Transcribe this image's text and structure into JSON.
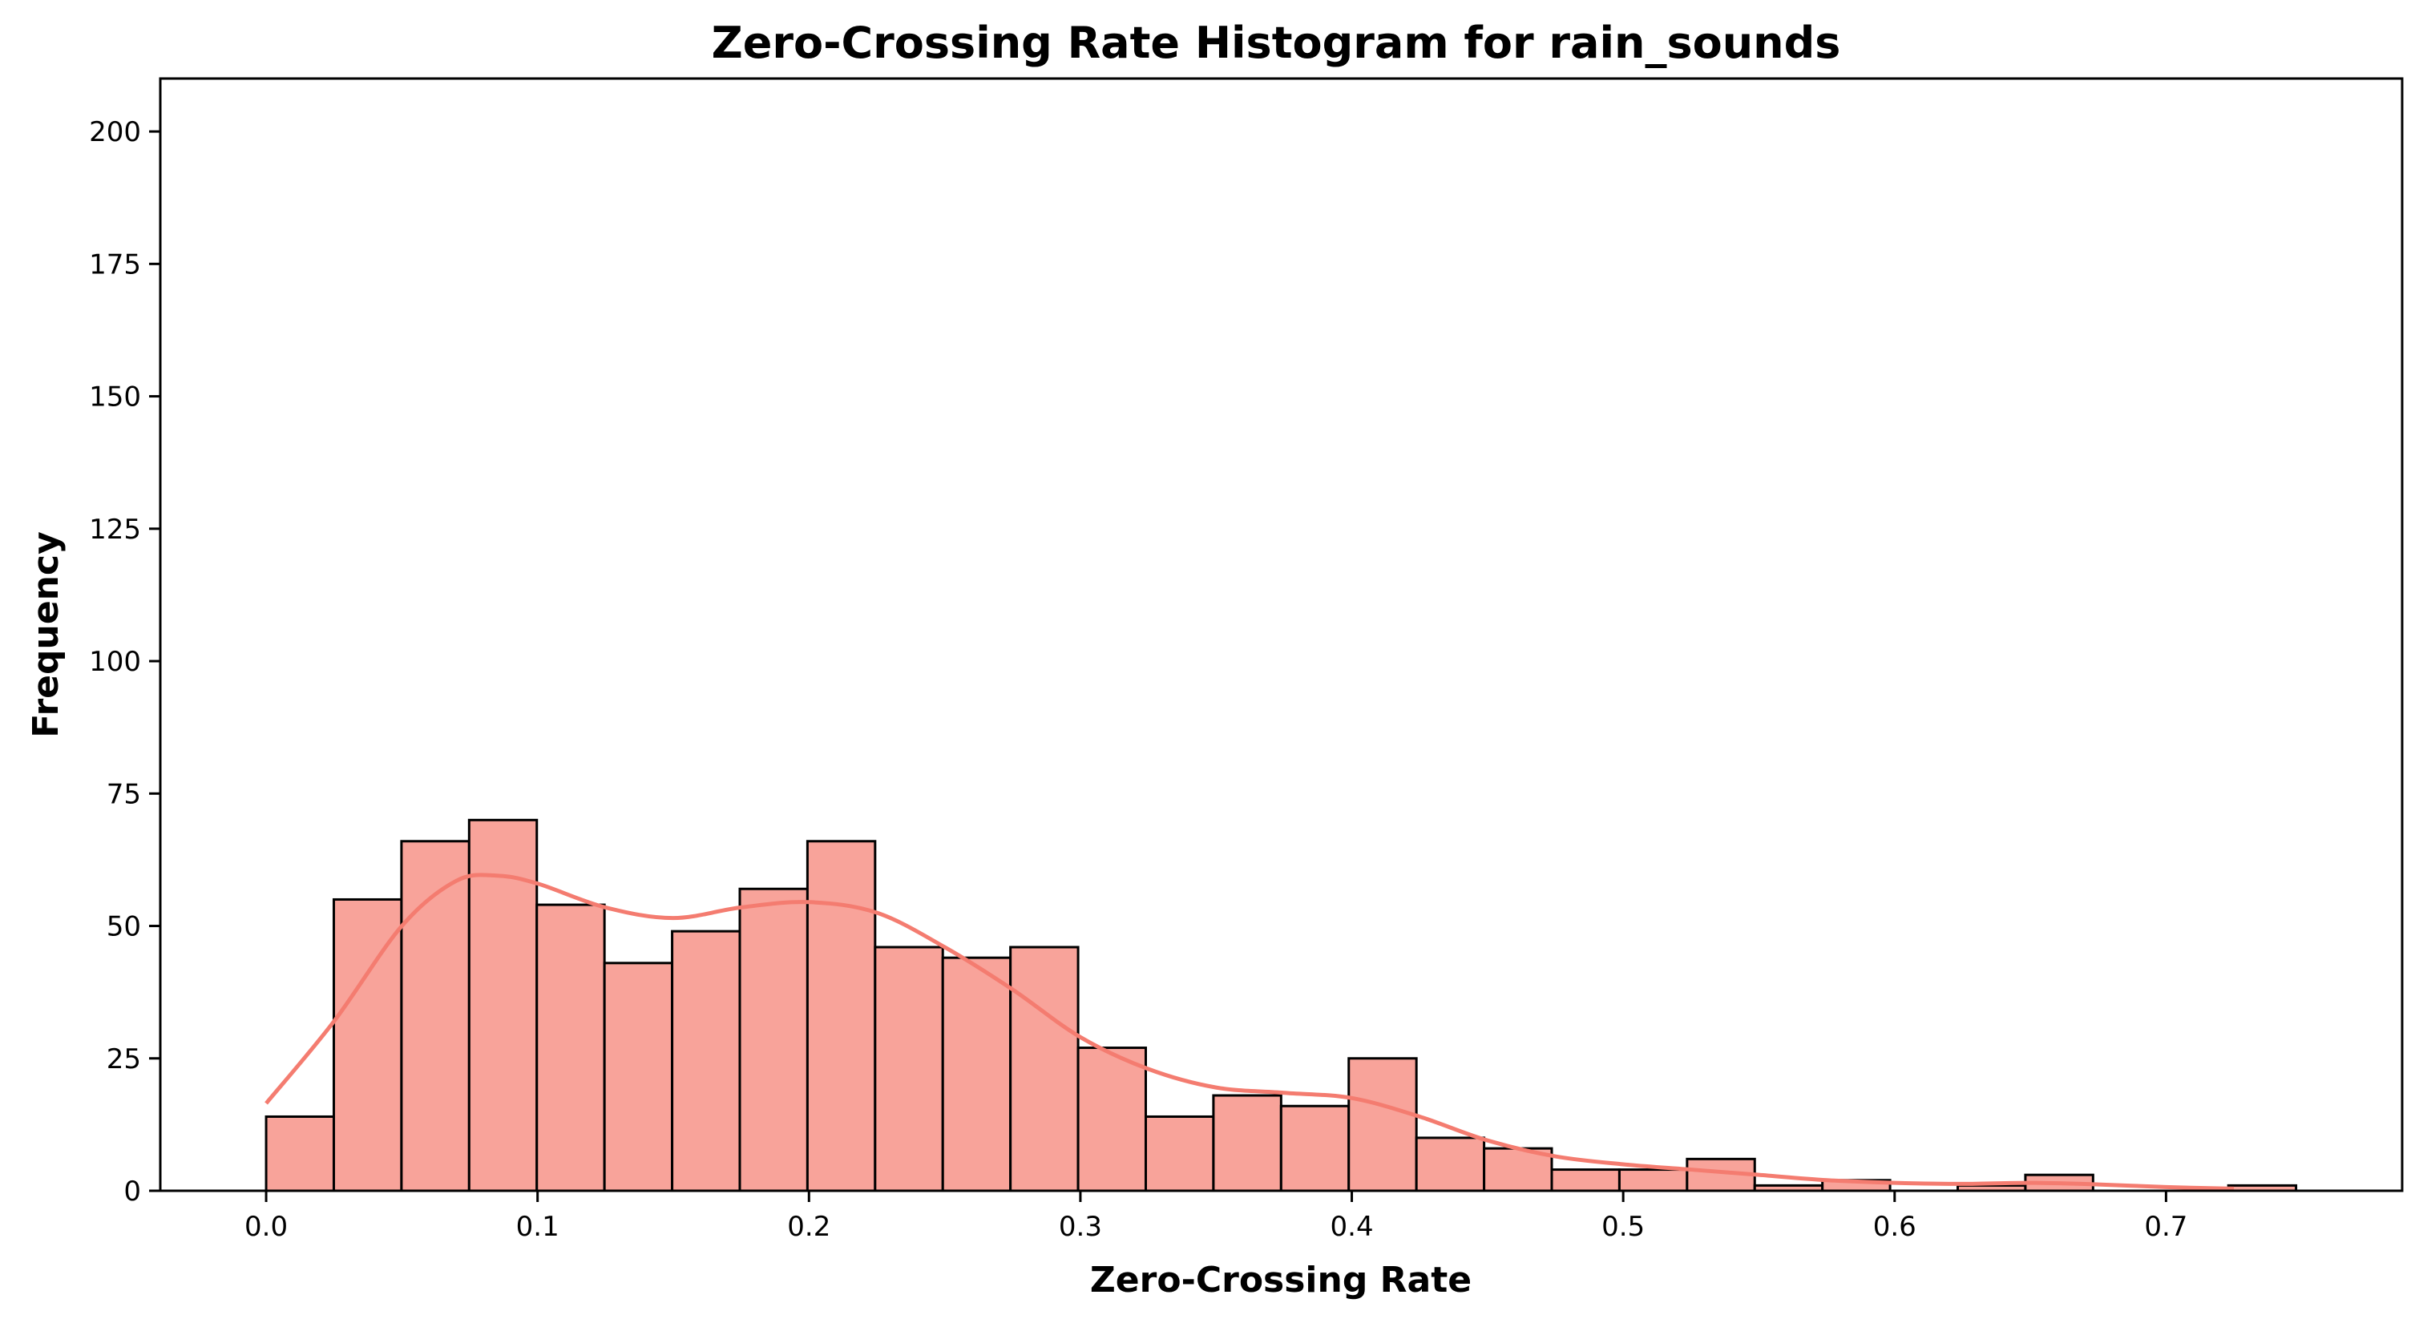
{
  "chart_data": {
    "type": "bar",
    "title": "Zero-Crossing Rate Histogram for rain_sounds",
    "xlabel": "Zero-Crossing Rate",
    "ylabel": "Frequency",
    "xlim": [
      -0.039,
      0.787
    ],
    "ylim": [
      0,
      210
    ],
    "x_ticks": [
      0.0,
      0.1,
      0.2,
      0.3,
      0.4,
      0.5,
      0.6,
      0.7
    ],
    "x_tick_labels": [
      "0.0",
      "0.1",
      "0.2",
      "0.3",
      "0.4",
      "0.5",
      "0.6",
      "0.7"
    ],
    "y_ticks": [
      0,
      25,
      50,
      75,
      100,
      125,
      150,
      175,
      200
    ],
    "y_tick_labels": [
      "0",
      "25",
      "50",
      "75",
      "100",
      "125",
      "150",
      "175",
      "200"
    ],
    "grid": false,
    "bins": {
      "start": 0.0,
      "width": 0.02493,
      "counts": [
        14,
        55,
        66,
        70,
        54,
        43,
        49,
        57,
        66,
        46,
        44,
        46,
        27,
        14,
        18,
        16,
        25,
        10,
        8,
        4,
        4,
        6,
        1,
        2,
        0,
        1,
        3,
        0,
        0,
        1
      ]
    },
    "kde": {
      "x": [
        0.0,
        0.025,
        0.05,
        0.07,
        0.085,
        0.1,
        0.125,
        0.15,
        0.175,
        0.2,
        0.225,
        0.25,
        0.275,
        0.3,
        0.325,
        0.35,
        0.375,
        0.4,
        0.425,
        0.45,
        0.475,
        0.5,
        0.525,
        0.55,
        0.575,
        0.6,
        0.625,
        0.65,
        0.675,
        0.7,
        0.725
      ],
      "y": [
        16.5,
        32,
        50,
        58.5,
        59.5,
        58,
        53.5,
        51.5,
        53.5,
        54.5,
        52.5,
        46,
        38,
        29,
        23,
        19.5,
        18.5,
        17.5,
        14,
        9.5,
        6.5,
        5,
        4,
        3,
        2,
        1.5,
        1.3,
        1.5,
        1.2,
        0.7,
        0.4
      ]
    },
    "colors": {
      "bar_fill": "#f8a39a",
      "bar_edge": "#000000",
      "kde_line": "#f47c70",
      "axes": "#000000"
    }
  }
}
